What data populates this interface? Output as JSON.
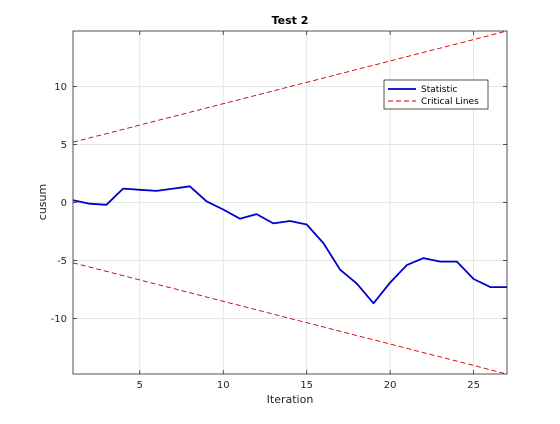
{
  "chart_data": {
    "type": "line",
    "title": "Test 2",
    "xlabel": "Iteration",
    "ylabel": "cusum",
    "xlim": [
      1,
      27
    ],
    "ylim": [
      -14.8,
      14.8
    ],
    "xticks": [
      5,
      10,
      15,
      20,
      25
    ],
    "yticks": [
      -10,
      -5,
      0,
      5,
      10
    ],
    "grid": true,
    "legend_position": "top-right",
    "series": [
      {
        "name": "Statistic",
        "color": "#0000cc",
        "style": "solid",
        "x": [
          1,
          2,
          3,
          4,
          5,
          6,
          7,
          8,
          9,
          10,
          11,
          12,
          13,
          14,
          15,
          16,
          17,
          18,
          19,
          20,
          21,
          22,
          23,
          24,
          25,
          26,
          27
        ],
        "y": [
          0.2,
          -0.1,
          -0.2,
          1.2,
          1.1,
          1.0,
          1.2,
          1.4,
          0.1,
          -0.6,
          -1.4,
          -1.0,
          -1.8,
          -1.6,
          -1.9,
          -3.5,
          -5.8,
          -7.0,
          -8.7,
          -6.9,
          -5.4,
          -4.8,
          -5.1,
          -5.1,
          -6.6,
          -7.3,
          -7.3
        ]
      },
      {
        "name": "Critical Lines",
        "color": "#cc0000",
        "style": "dashed",
        "x": [
          1,
          27
        ],
        "y": [
          5.2,
          14.8
        ]
      },
      {
        "name": "",
        "color": "#cc0000",
        "style": "dashed",
        "x": [
          1,
          27
        ],
        "y": [
          -5.2,
          -14.8
        ]
      }
    ]
  }
}
